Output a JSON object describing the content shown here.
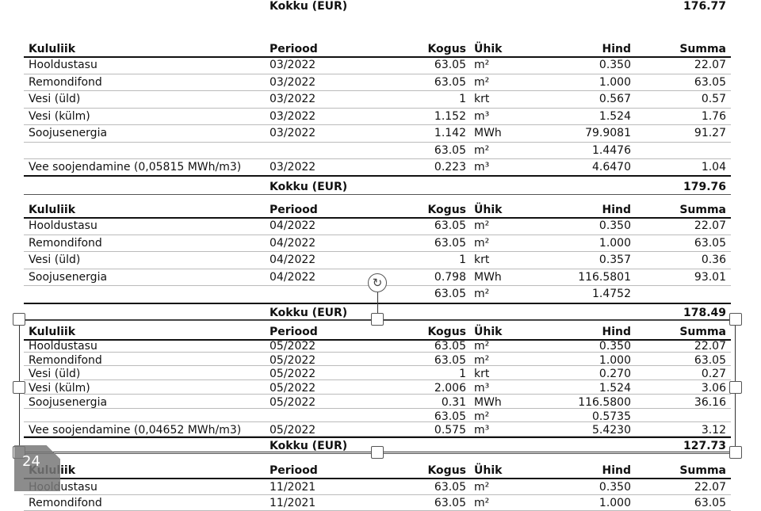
{
  "headers": {
    "item": "Kululiik",
    "period": "Periood",
    "qty": "Kogus",
    "unit": "Ühik",
    "price": "Hind",
    "sum": "Summa"
  },
  "total_label": "Kokku (EUR)",
  "top_total": "176.77",
  "blocks": [
    {
      "rows": [
        [
          "Hooldustasu",
          "03/2022",
          "63.05",
          "m²",
          "0.350",
          "22.07"
        ],
        [
          "Remondifond",
          "03/2022",
          "63.05",
          "m²",
          "1.000",
          "63.05"
        ],
        [
          "Vesi (üld)",
          "03/2022",
          "1",
          "krt",
          "0.567",
          "0.57"
        ],
        [
          "Vesi (külm)",
          "03/2022",
          "1.152",
          "m³",
          "1.524",
          "1.76"
        ],
        [
          "Soojusenergia",
          "03/2022",
          "1.142",
          "MWh",
          "79.9081",
          "91.27"
        ],
        [
          "",
          "",
          "63.05",
          "m²",
          "1.4476",
          ""
        ],
        [
          "Vee soojendamine (0,05815 MWh/m3)",
          "03/2022",
          "0.223",
          "m³",
          "4.6470",
          "1.04"
        ]
      ],
      "total": "179.76"
    },
    {
      "rows": [
        [
          "Hooldustasu",
          "04/2022",
          "63.05",
          "m²",
          "0.350",
          "22.07"
        ],
        [
          "Remondifond",
          "04/2022",
          "63.05",
          "m²",
          "1.000",
          "63.05"
        ],
        [
          "Vesi (üld)",
          "04/2022",
          "1",
          "krt",
          "0.357",
          "0.36"
        ],
        [
          "Soojusenergia",
          "04/2022",
          "0.798",
          "MWh",
          "116.5801",
          "93.01"
        ],
        [
          "",
          "",
          "63.05",
          "m²",
          "1.4752",
          ""
        ]
      ],
      "total": "178.49"
    },
    {
      "rows": [
        [
          "Hooldustasu",
          "05/2022",
          "63.05",
          "m²",
          "0.350",
          "22.07"
        ],
        [
          "Remondifond",
          "05/2022",
          "63.05",
          "m²",
          "1.000",
          "63.05"
        ],
        [
          "Vesi (üld)",
          "05/2022",
          "1",
          "krt",
          "0.270",
          "0.27"
        ],
        [
          "Vesi (külm)",
          "05/2022",
          "2.006",
          "m³",
          "1.524",
          "3.06"
        ],
        [
          "Soojusenergia",
          "05/2022",
          "0.31",
          "MWh",
          "116.5800",
          "36.16"
        ],
        [
          "",
          "",
          "63.05",
          "m²",
          "0.5735",
          ""
        ],
        [
          "Vee soojendamine (0,04652 MWh/m3)",
          "05/2022",
          "0.575",
          "m³",
          "5.4230",
          "3.12"
        ]
      ],
      "total": "127.73"
    },
    {
      "rows": [
        [
          "Hooldustasu",
          "11/2021",
          "63.05",
          "m²",
          "0.350",
          "22.07"
        ],
        [
          "Remondifond",
          "11/2021",
          "63.05",
          "m²",
          "1.000",
          "63.05"
        ]
      ]
    }
  ],
  "page_badge": "24",
  "icons": {
    "rotate": "rotate-handle-icon"
  }
}
